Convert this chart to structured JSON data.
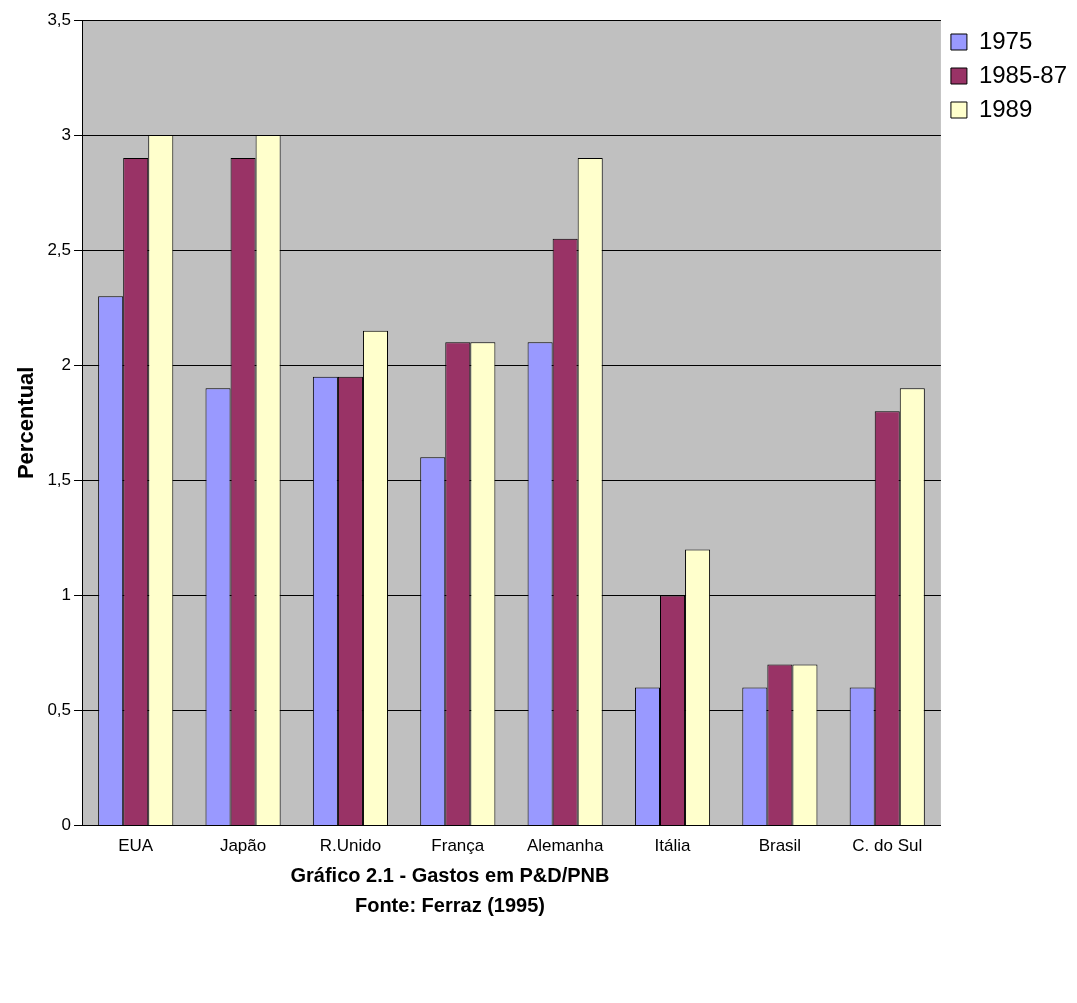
{
  "chart_data": {
    "type": "bar",
    "title": "Gráfico 2.1 - Gastos em P&D/PNB",
    "ylabel": "Percentual",
    "annotations": [
      "Fonte: Ferraz (1995)"
    ],
    "categories": [
      "EUA",
      "Japão",
      "R.Unido",
      "França",
      "Alemanha",
      "Itália",
      "Brasil",
      "C. do Sul"
    ],
    "series": [
      {
        "name": "1975",
        "color": "#9999ff",
        "values": [
          2.3,
          1.9,
          1.95,
          1.6,
          2.1,
          0.6,
          0.6,
          0.6
        ]
      },
      {
        "name": "1985-87",
        "color": "#993366",
        "values": [
          2.9,
          2.9,
          1.95,
          2.1,
          2.55,
          1.0,
          0.7,
          1.8
        ]
      },
      {
        "name": "1989",
        "color": "#ffffcc",
        "values": [
          3.0,
          3.0,
          2.15,
          2.1,
          2.9,
          1.2,
          0.7,
          1.9
        ]
      }
    ],
    "ylim": [
      0,
      3.5
    ],
    "yticks": [
      0,
      {
        "value": 0.5,
        "label": "0,5"
      },
      1,
      {
        "value": 1.5,
        "label": "1,5"
      },
      2,
      {
        "value": 2.5,
        "label": "2,5"
      },
      3,
      {
        "value": 3.5,
        "label": "3,5"
      }
    ],
    "grid": "y",
    "legend": "top right"
  }
}
